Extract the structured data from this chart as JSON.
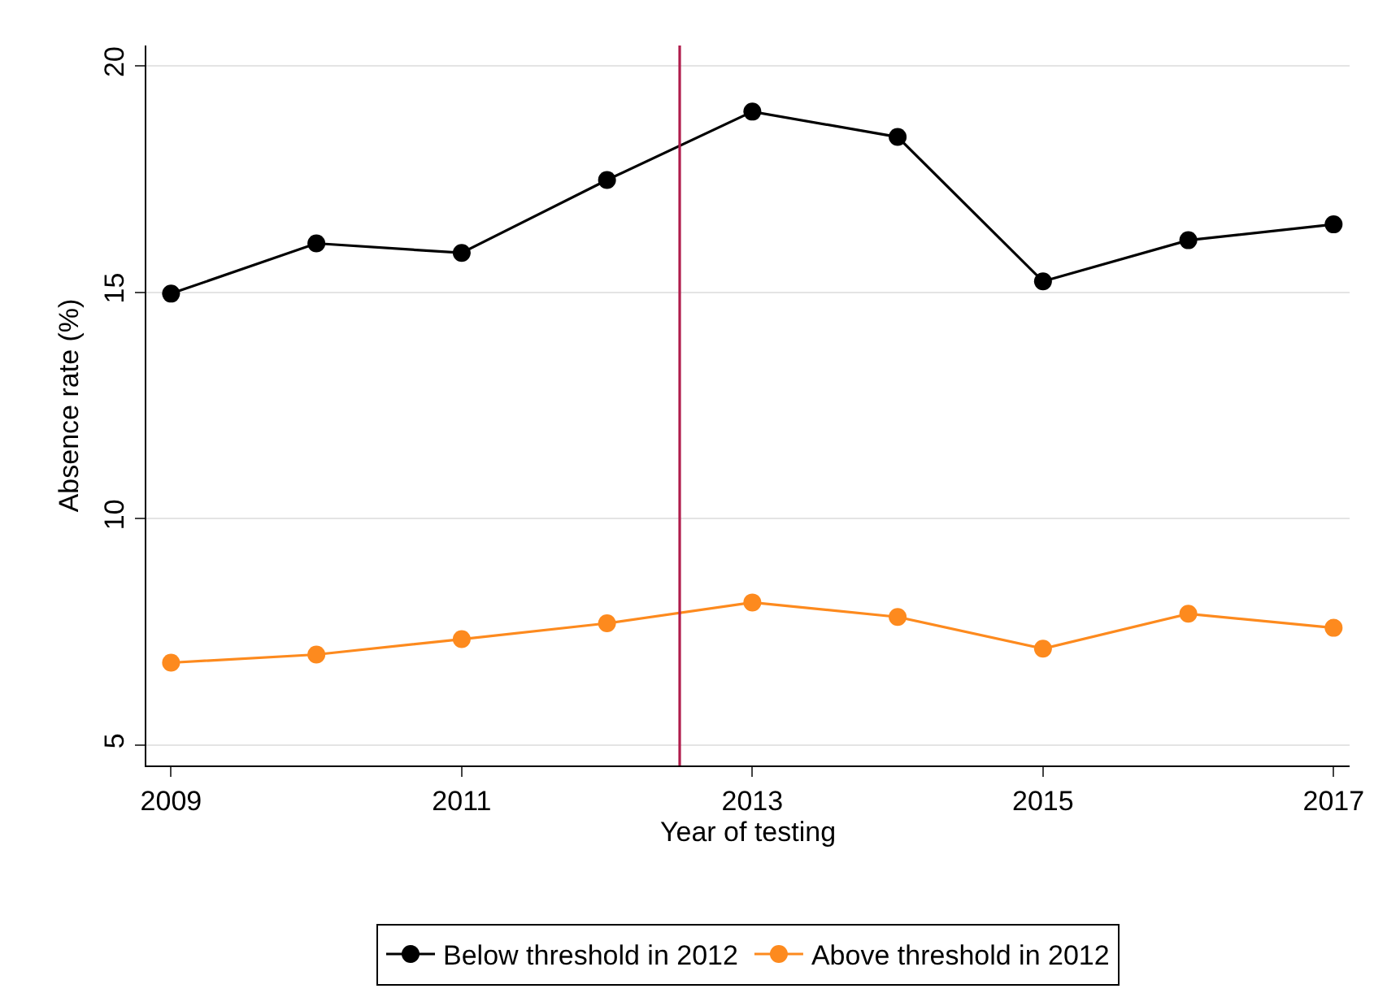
{
  "chart_data": {
    "type": "line",
    "xlabel": "Year of testing",
    "ylabel": "Absence rate (%)",
    "x": [
      2009,
      2010,
      2011,
      2012,
      2013,
      2014,
      2015,
      2016,
      2017
    ],
    "series": [
      {
        "name": "Below threshold in 2012",
        "color": "#000000",
        "values": [
          14.97,
          16.08,
          15.87,
          17.48,
          18.99,
          18.43,
          15.24,
          16.15,
          16.5
        ]
      },
      {
        "name": "Above threshold in 2012",
        "color": "#fd8a1e",
        "values": [
          6.82,
          7.0,
          7.34,
          7.69,
          8.15,
          7.83,
          7.13,
          7.9,
          7.59
        ]
      }
    ],
    "xlim": [
      2008.83,
      2017.11
    ],
    "xticks": [
      2009,
      2011,
      2013,
      2015,
      2017
    ],
    "ylim": [
      4.55,
      20.45
    ],
    "yticks": [
      5,
      10,
      15,
      20
    ],
    "ref_lines": [
      {
        "axis": "x",
        "value": 2012.5,
        "color": "#b01c4c"
      }
    ],
    "grid": "y",
    "legend": "bottom",
    "marker": "circle",
    "line_style": "solid"
  }
}
